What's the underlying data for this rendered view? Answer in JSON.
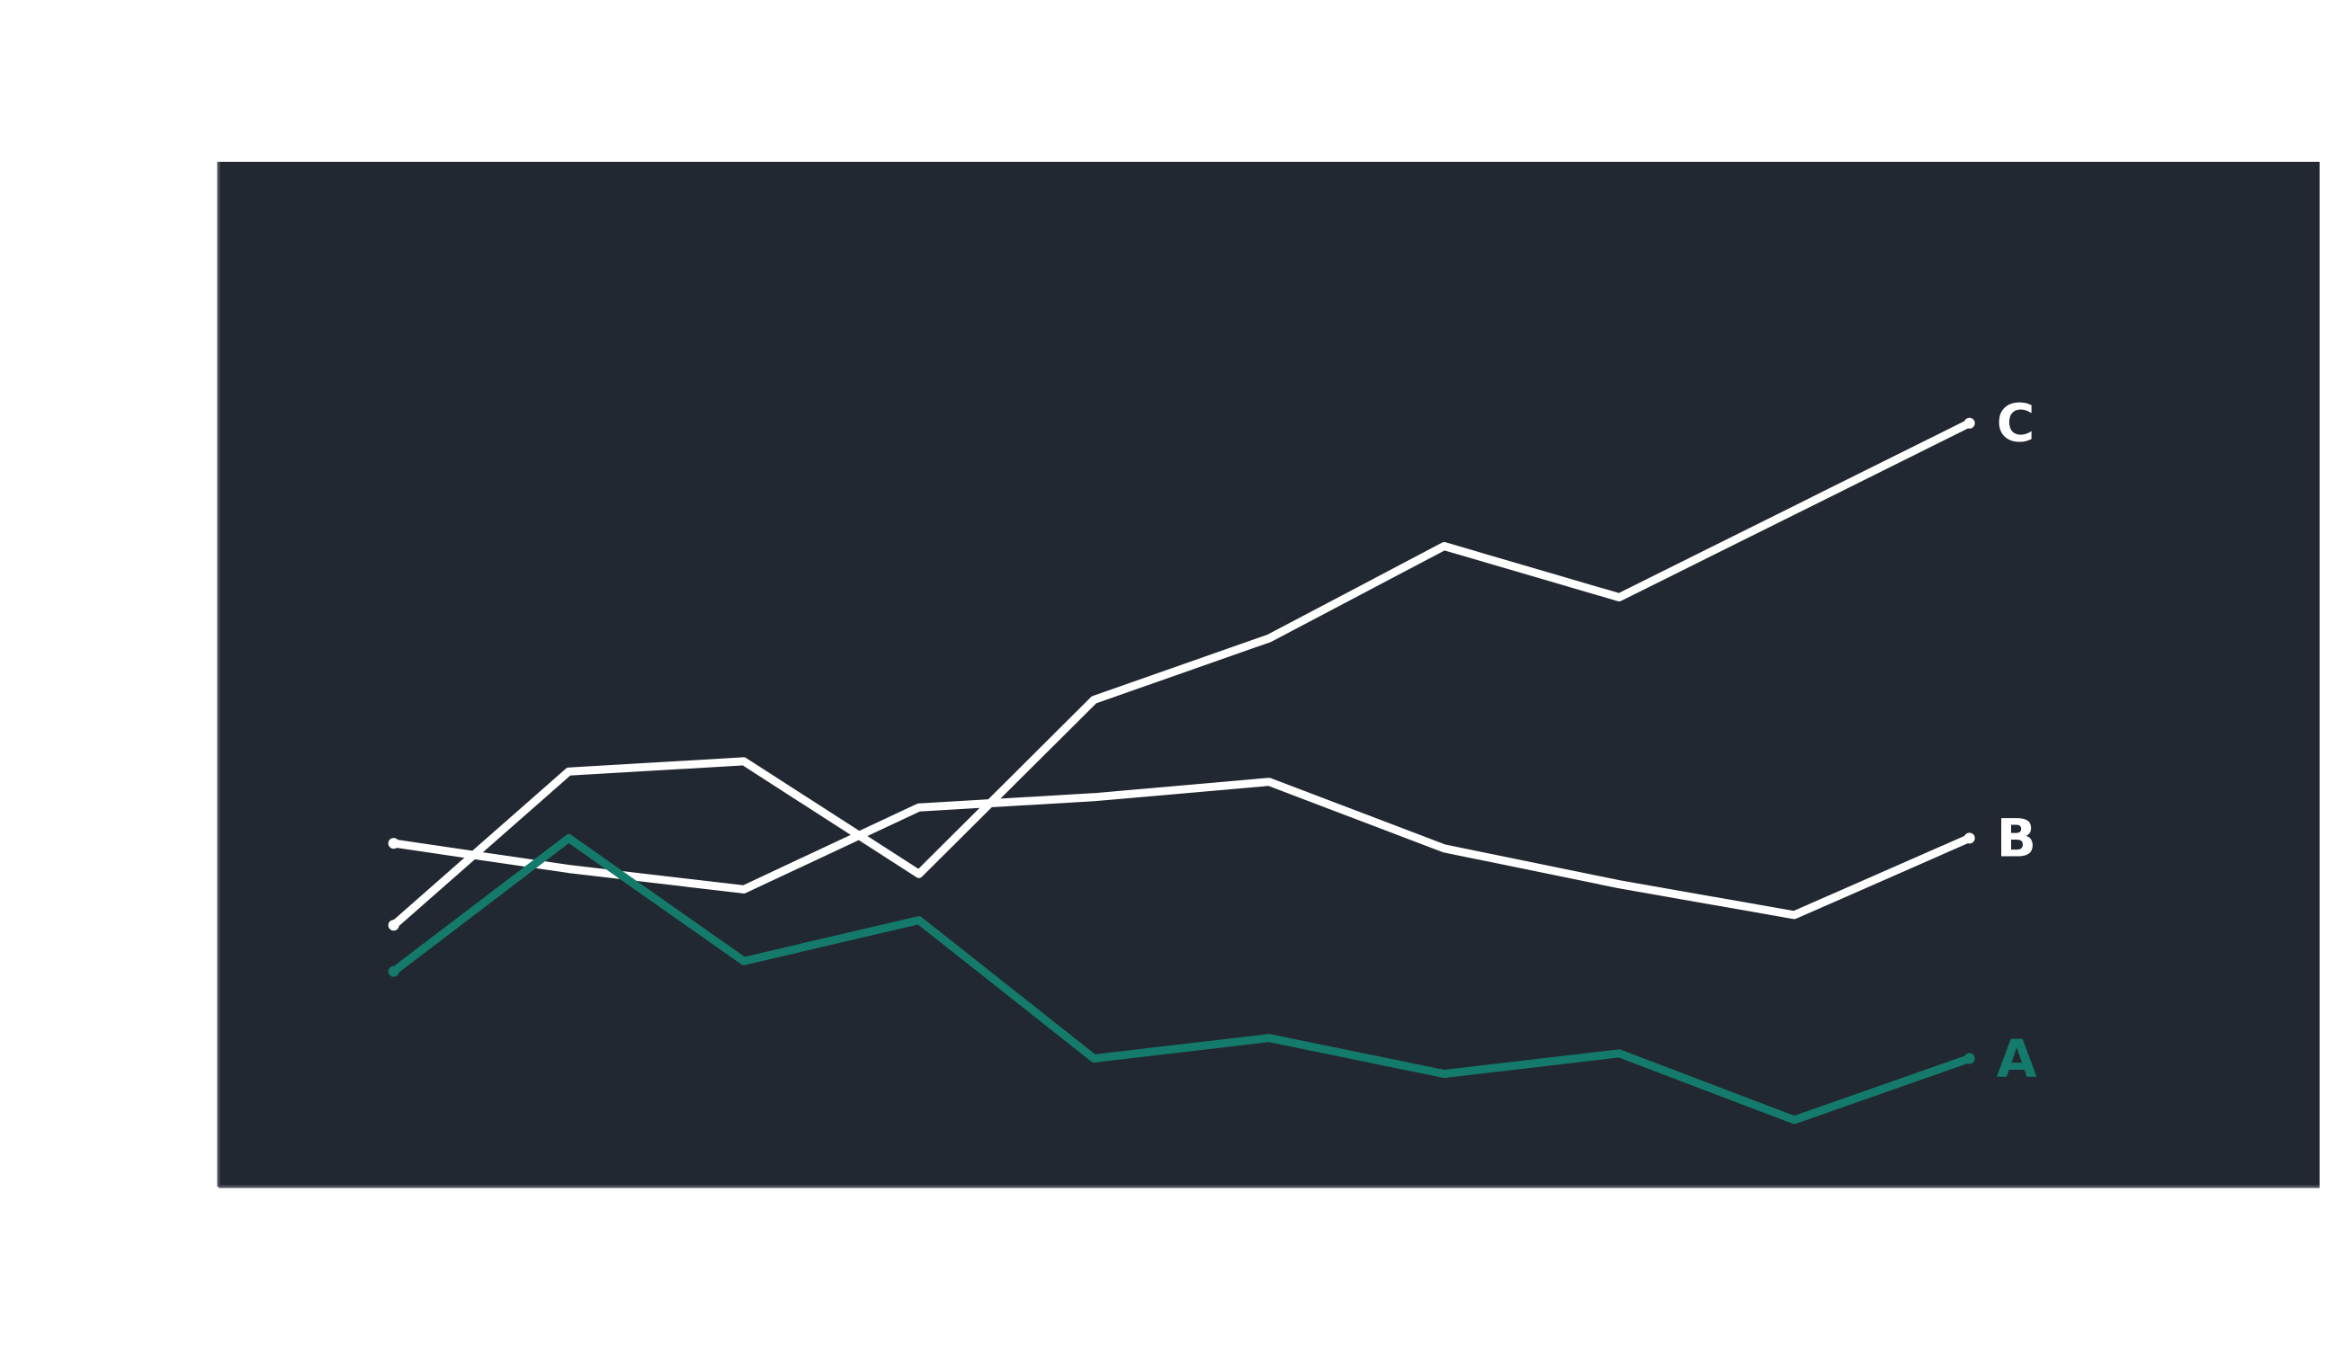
{
  "chart_data": {
    "type": "line",
    "title": "",
    "xlabel": "",
    "ylabel": "",
    "grid": false,
    "legend": "none",
    "background_color": "#222831",
    "page_color": "#ffffff",
    "x": [
      1,
      2,
      3,
      4,
      5,
      6,
      7,
      8,
      9,
      10
    ],
    "xlim": [
      0,
      12
    ],
    "ylim": [
      0,
      100
    ],
    "series": [
      {
        "name": "C",
        "color": "#ffffff",
        "values": [
          25.5,
          40.5,
          41.5,
          30.5,
          47.5,
          53.5,
          62.5,
          57.5,
          66.0,
          74.5
        ]
      },
      {
        "name": "B",
        "color": "#ffffff",
        "values": [
          33.5,
          31.0,
          29.0,
          37.0,
          38.0,
          39.5,
          33.0,
          29.5,
          26.5,
          34.0
        ]
      },
      {
        "name": "A",
        "color": "#147a6b",
        "values": [
          21.0,
          34.0,
          22.0,
          26.0,
          12.5,
          14.5,
          11.0,
          13.0,
          6.5,
          12.5
        ]
      }
    ]
  }
}
